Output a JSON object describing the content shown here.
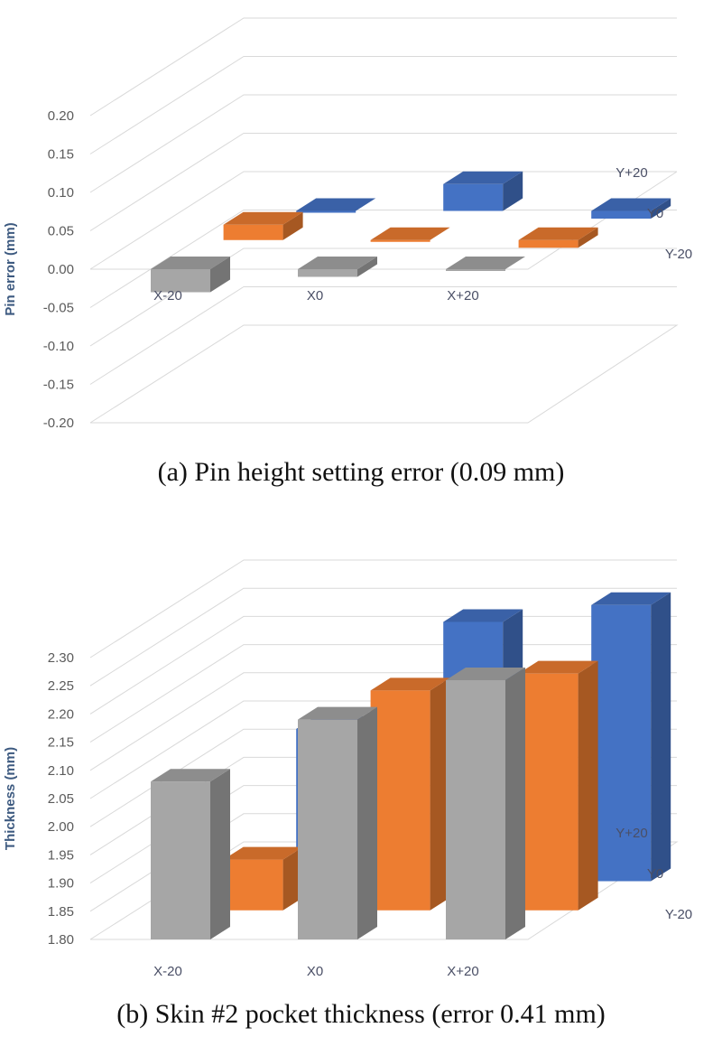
{
  "colors": {
    "Y-20": "#a6a6a6",
    "Y0": "#ed7d31",
    "Y+20": "#4472c4",
    "grid": "#d9d9d9",
    "axis_text": "#5b5b5b",
    "ylabel_text": "#3d5a80"
  },
  "chart_data": [
    {
      "type": "bar",
      "subtype": "3d-column",
      "caption": "(a) Pin height setting error (0.09 mm)",
      "ylabel": "Pin error (mm)",
      "ylim": [
        -0.2,
        0.2
      ],
      "yticks": [
        "0.20",
        "0.15",
        "0.10",
        "0.05",
        "0.00",
        "-0.05",
        "-0.10",
        "-0.15",
        "-0.20"
      ],
      "categories": [
        "X-20",
        "X0",
        "X+20"
      ],
      "series": [
        {
          "name": "Y-20",
          "values": [
            -0.03,
            -0.01,
            0.0
          ]
        },
        {
          "name": "Y0",
          "values": [
            0.02,
            0.0,
            -0.01
          ]
        },
        {
          "name": "Y+20",
          "values": [
            0.0,
            0.035,
            -0.01
          ]
        }
      ]
    },
    {
      "type": "bar",
      "subtype": "3d-column",
      "caption": "(b) Skin #2 pocket thickness (error 0.41 mm)",
      "ylabel": "Thickness (mm)",
      "ylim": [
        1.8,
        2.3
      ],
      "yticks": [
        "2.30",
        "2.25",
        "2.20",
        "2.15",
        "2.10",
        "2.05",
        "2.00",
        "1.95",
        "1.90",
        "1.85",
        "1.80"
      ],
      "categories": [
        "X-20",
        "X0",
        "X+20"
      ],
      "series": [
        {
          "name": "Y-20",
          "values": [
            2.08,
            2.19,
            2.26
          ]
        },
        {
          "name": "Y0",
          "values": [
            1.89,
            2.19,
            2.22
          ]
        },
        {
          "name": "Y+20",
          "values": [
            2.07,
            2.26,
            2.29
          ]
        }
      ]
    }
  ]
}
